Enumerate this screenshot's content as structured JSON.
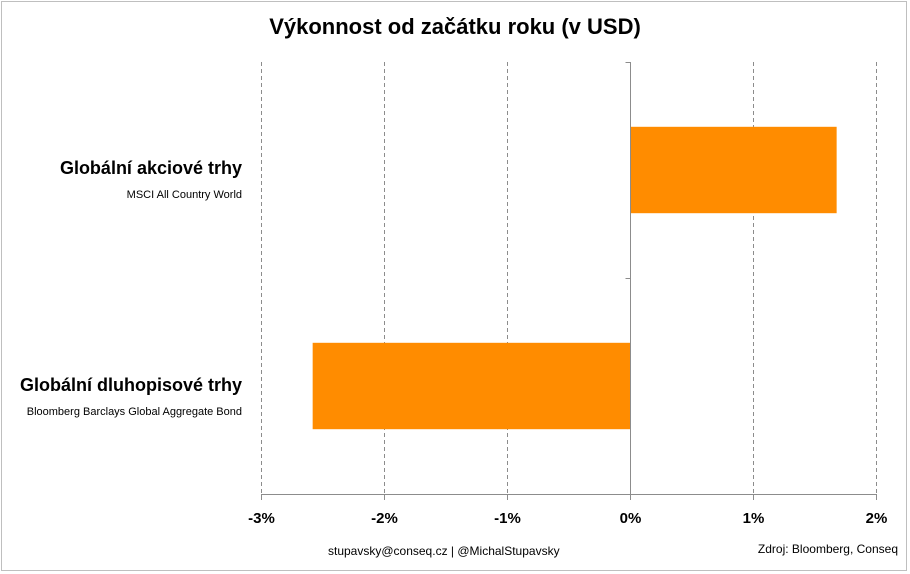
{
  "chart_data": {
    "type": "bar",
    "orientation": "horizontal",
    "title": "Výkonnost od začátku roku (v USD)",
    "categories": [
      {
        "name": "Globální akciové trhy",
        "subtitle": "MSCI All Country World"
      },
      {
        "name": "Globální dluhopisové trhy",
        "subtitle": "Bloomberg Barclays Global Aggregate Bond"
      }
    ],
    "values": [
      1.68,
      -2.58
    ],
    "xlim": [
      -3,
      2
    ],
    "xticks": [
      {
        "value": -3,
        "label": "-3%"
      },
      {
        "value": -2,
        "label": "-2%"
      },
      {
        "value": -1,
        "label": "-1%"
      },
      {
        "value": 0,
        "label": "0%"
      },
      {
        "value": 1,
        "label": "1%"
      },
      {
        "value": 2,
        "label": "2%"
      }
    ],
    "grid": true,
    "bar_color": "#ff8c00"
  },
  "footer": {
    "contact": "stupavsky@conseq.cz  |  @MichalStupavsky",
    "source": "Zdroj: Bloomberg, Conseq"
  }
}
